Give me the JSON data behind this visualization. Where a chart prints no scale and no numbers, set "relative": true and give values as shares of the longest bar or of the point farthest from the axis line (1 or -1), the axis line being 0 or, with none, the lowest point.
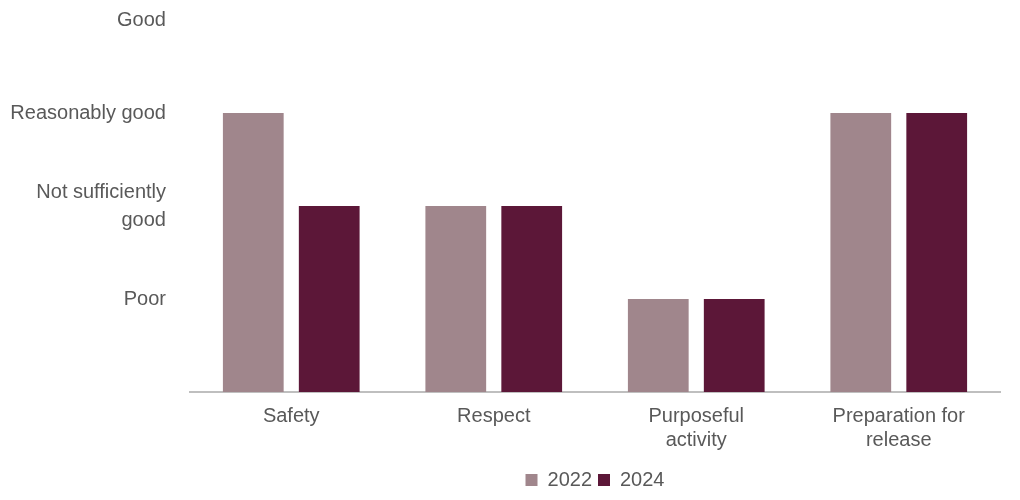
{
  "chart_data": {
    "type": "bar",
    "relative": true,
    "categories": [
      "Safety",
      "Respect",
      "Purposeful activity",
      "Preparation for release"
    ],
    "series": [
      {
        "name": "2022",
        "color": "#a0868c",
        "values": [
          1,
          0.667,
          0.333,
          1
        ]
      },
      {
        "name": "2024",
        "color": "#5c1738",
        "values": [
          0.667,
          0.667,
          0.333,
          1
        ]
      }
    ],
    "annotations": [
      "Poor",
      "Not sufficiently good",
      "Reasonably good",
      "Good"
    ],
    "grid": false,
    "legend": "bottom"
  }
}
